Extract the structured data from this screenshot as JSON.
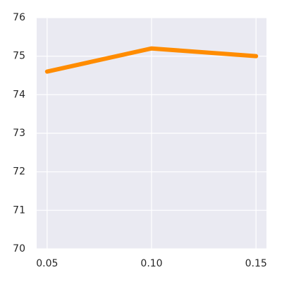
{
  "chart_data": {
    "type": "line",
    "x": [
      0.05,
      0.1,
      0.15
    ],
    "series": [
      {
        "color": "#ff8c00",
        "values": [
          74.6,
          75.2,
          75.0
        ]
      }
    ],
    "xlim": [
      0.045,
      0.155
    ],
    "xticks": [
      0.05,
      {
        "value": 0.1,
        "label": "0.10"
      },
      0.15
    ],
    "ylim": [
      70,
      76
    ],
    "yticks": [
      70,
      71,
      72,
      73,
      74,
      75,
      76
    ],
    "grid": true
  }
}
